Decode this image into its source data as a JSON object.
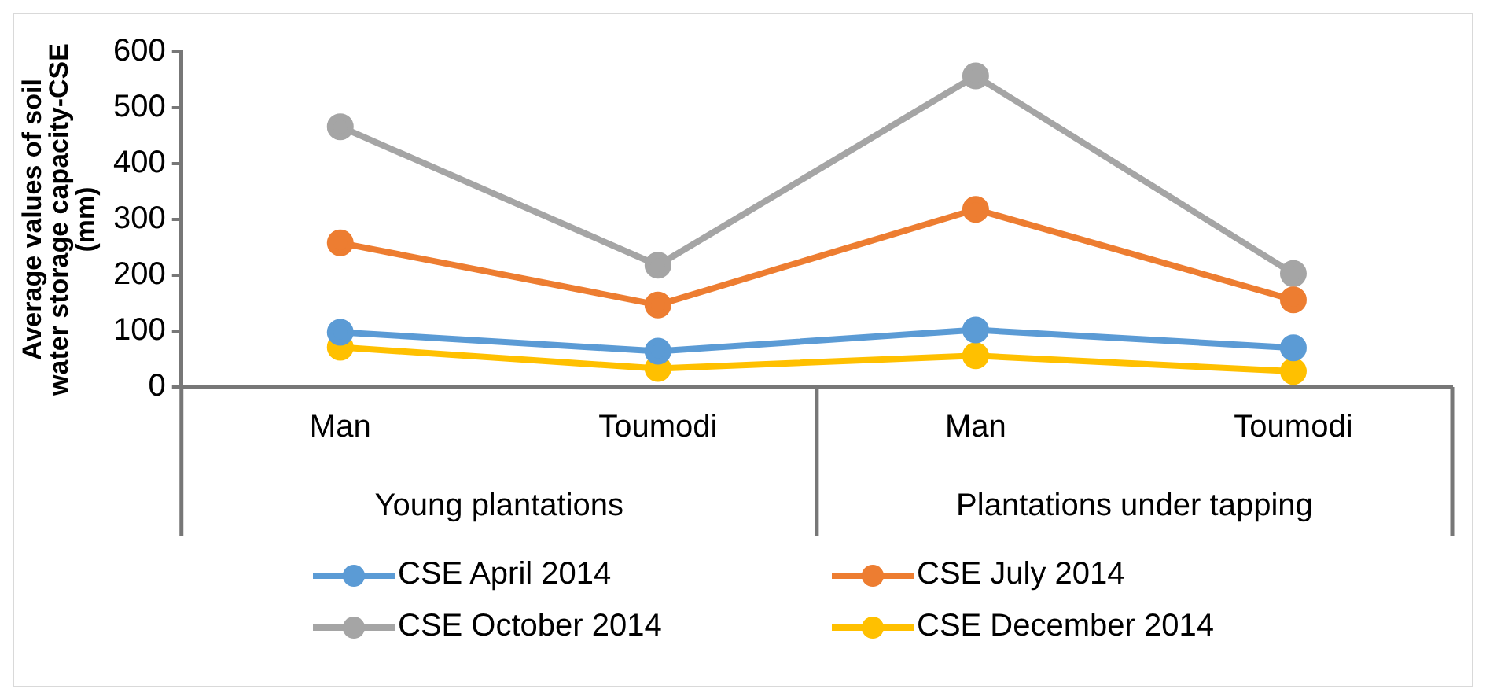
{
  "chart_data": {
    "type": "line",
    "ylabel": "Average values of soil water storage capacity-CSE (mm)",
    "categories": [
      "Man",
      "Toumodi",
      "Man",
      "Toumodi"
    ],
    "annotations": [
      "Young plantations",
      "Plantations under tapping"
    ],
    "series": [
      {
        "name": "CSE April 2014",
        "color": "#5b9bd5",
        "values": [
          98,
          64,
          102,
          70
        ]
      },
      {
        "name": "CSE July 2014",
        "color": "#ed7d31",
        "values": [
          258,
          147,
          318,
          156
        ]
      },
      {
        "name": "CSE October 2014",
        "color": "#a5a5a5",
        "values": [
          466,
          218,
          557,
          203
        ]
      },
      {
        "name": "CSE December 2014",
        "color": "#ffc000",
        "values": [
          71,
          33,
          56,
          28
        ]
      }
    ],
    "ylim": [
      0,
      600
    ],
    "yticks": [
      0,
      100,
      200,
      300,
      400,
      500,
      600
    ],
    "grid": false,
    "legend": "bottom",
    "marker": "circle",
    "line_style": "solid"
  }
}
